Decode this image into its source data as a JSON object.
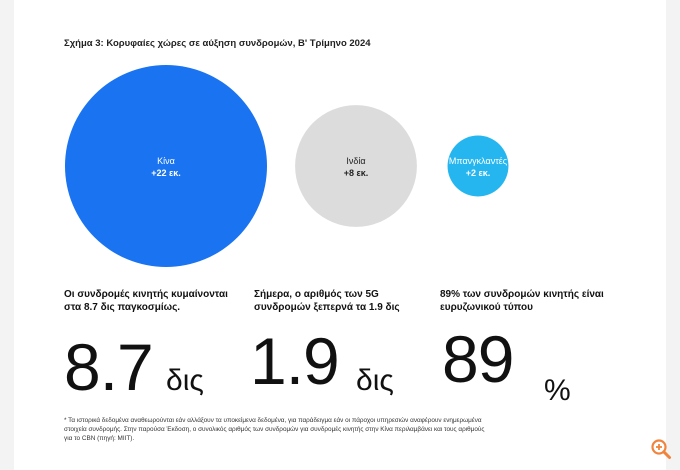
{
  "figure": {
    "title": "Σχήμα 3: Κορυφαίες χώρες σε αύξηση συνδρομών, Β' Τρίμηνο 2024"
  },
  "chart_data": {
    "type": "bubble",
    "title": "Σχήμα 3: Κορυφαίες χώρες σε αύξηση συνδρομών, Β' Τρίμηνο 2024",
    "categories": [
      "Κίνα",
      "Ινδία",
      "Μπανγκλαντές"
    ],
    "values": [
      22,
      8,
      2
    ],
    "value_labels": [
      "+22 εκ.",
      "+8 εκ.",
      "+2 εκ."
    ],
    "colors": [
      "#1a73f0",
      "#dcdcdc",
      "#25b6f0"
    ],
    "label_colors": [
      "#ffffff",
      "#222222",
      "#ffffff"
    ]
  },
  "stats": [
    {
      "text": "Οι συνδρομές κινητής κυμαίνονται στα 8.7 δις παγκοσμίως.",
      "value": "8.7",
      "unit": "δις"
    },
    {
      "text": "Σήμερα, ο αριθμός των 5G συνδρομών ξεπερνά τα 1.9 δις",
      "value": "1.9",
      "unit": "δις"
    },
    {
      "text": "89% των συνδρομών κινητής είναι ευρυζωνικού τύπου",
      "value": "89",
      "unit": "%"
    }
  ],
  "footnote": "* Τα ιστορικά δεδομένα αναθεωρούνται εάν αλλάξουν τα υποκείμενα δεδομένα, για παράδειγμα εάν οι πάροχοι υπηρεσιών αναφέρουν ενημερωμένα στοιχεία συνδρομής. Στην παρούσα Έκδοση, ο συνολικός αριθμός των συνδρομών για συνδρομές κινητής στην Κίνα περιλαμβάνει και τους αριθμούς για το CBN (πηγή: MIIT).",
  "zoom_icon": "zoom-in-icon",
  "zoom_color": "#f0843c"
}
